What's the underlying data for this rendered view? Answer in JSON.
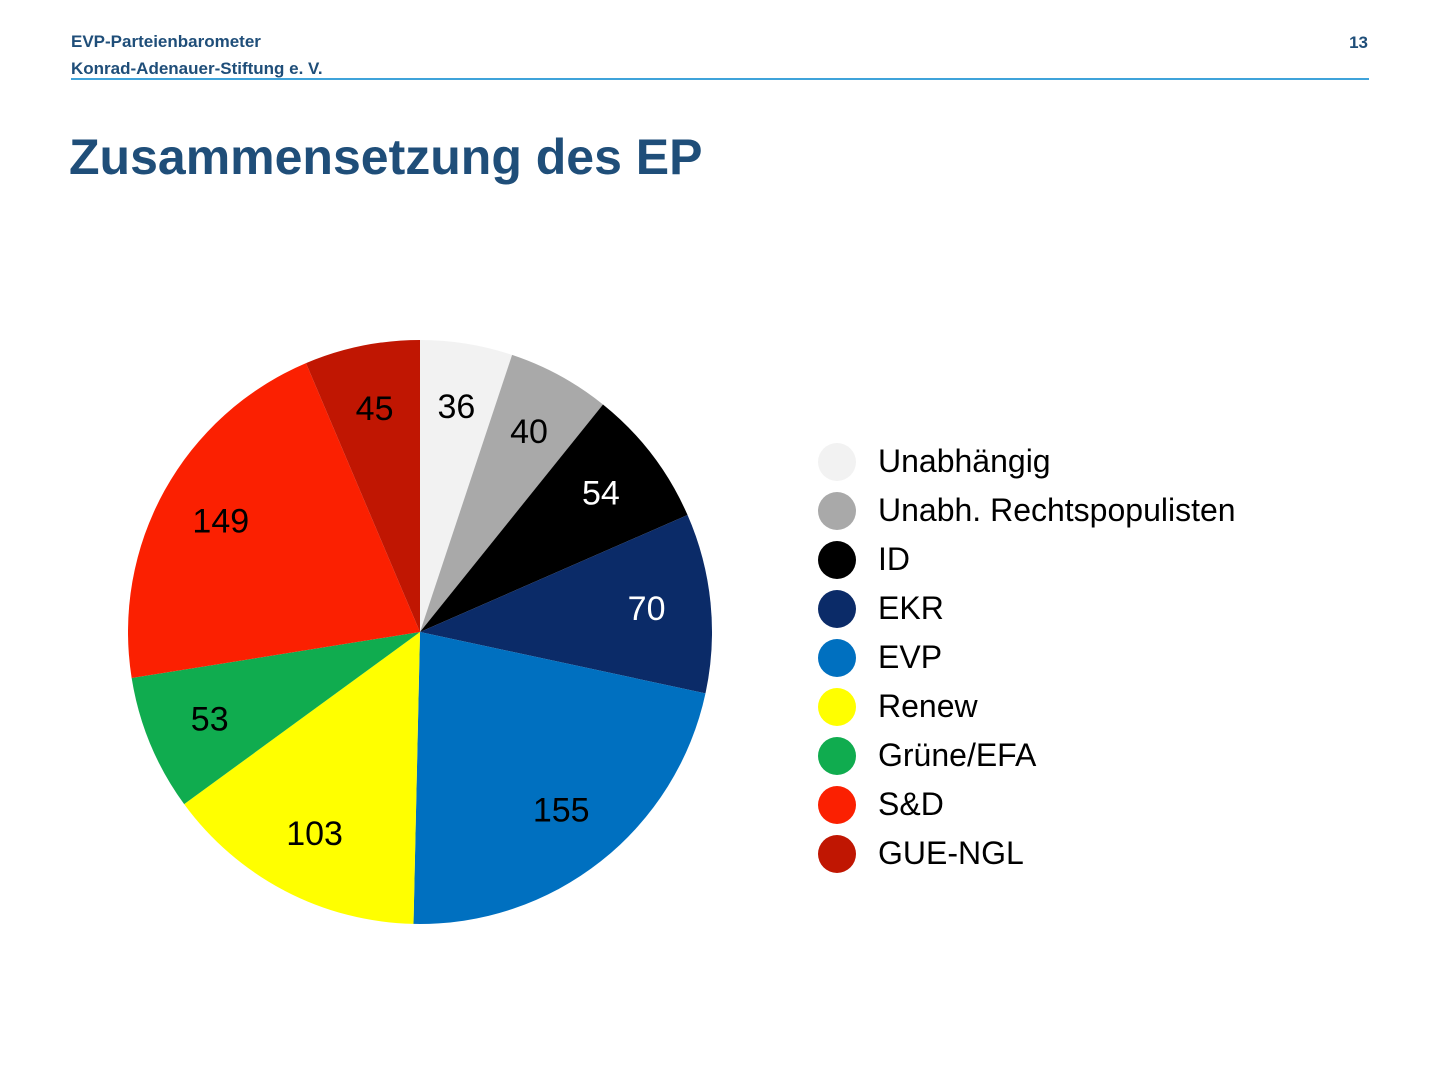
{
  "header": {
    "line1": "EVP-Parteienbarometer",
    "line2": "Konrad-Adenauer-Stiftung e. V.",
    "page_number": "13",
    "text_color": "#1F4E79",
    "rule_color": "#3FA3DA"
  },
  "title": "Zusammensetzung des EP",
  "title_color": "#1F4E79",
  "chart_data": {
    "type": "pie",
    "title": "Zusammensetzung des EP",
    "total": 705,
    "start_angle_deg": 0,
    "direction": "clockwise",
    "legend_position": "right",
    "data_labels": "values",
    "series": [
      {
        "label": "Unabhängig",
        "value": 36,
        "color": "#F2F2F2",
        "label_color": "#000000"
      },
      {
        "label": "Unabh. Rechtspopulisten",
        "value": 40,
        "color": "#A9A9A9",
        "label_color": "#000000"
      },
      {
        "label": "ID",
        "value": 54,
        "color": "#000000",
        "label_color": "#FFFFFF"
      },
      {
        "label": "EKR",
        "value": 70,
        "color": "#0B2B68",
        "label_color": "#FFFFFF"
      },
      {
        "label": "EVP",
        "value": 155,
        "color": "#0070C0",
        "label_color": "#000000"
      },
      {
        "label": "Renew",
        "value": 103,
        "color": "#FFFF00",
        "label_color": "#000000"
      },
      {
        "label": "Grüne/EFA",
        "value": 53,
        "color": "#10AC4F",
        "label_color": "#000000"
      },
      {
        "label": "S&D",
        "value": 149,
        "color": "#FB2001",
        "label_color": "#000000"
      },
      {
        "label": "GUE-NGL",
        "value": 45,
        "color": "#C01602",
        "label_color": "#000000"
      }
    ]
  }
}
